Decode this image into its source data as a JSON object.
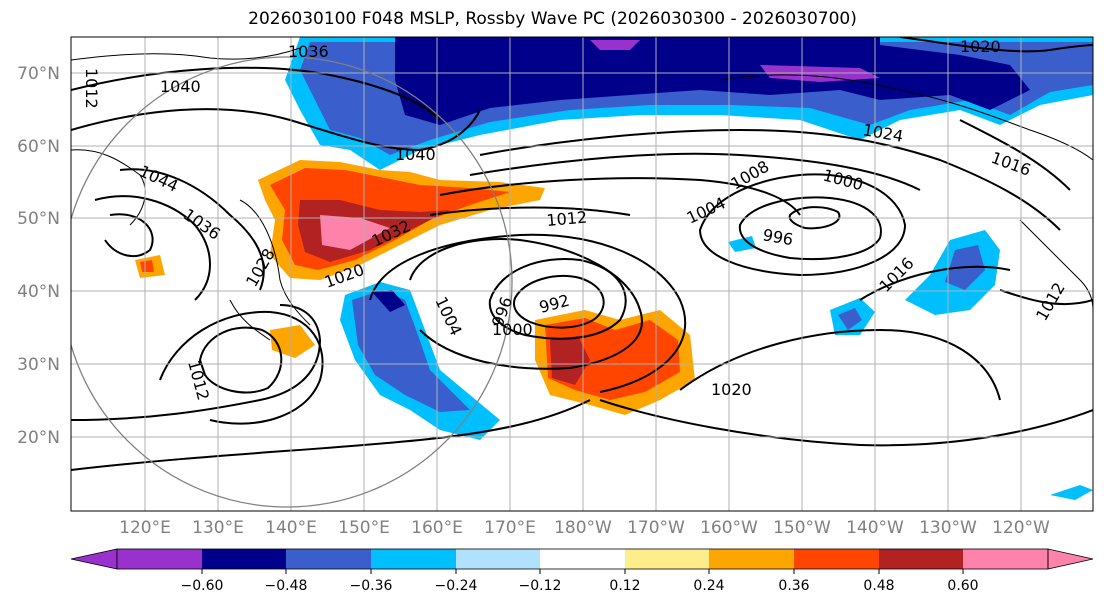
{
  "title": "2026030100 F048 MSLP, Rossby Wave PC (2026030300 - 2026030700)",
  "latitudes": [
    "70°N",
    "60°N",
    "50°N",
    "40°N",
    "30°N",
    "20°N"
  ],
  "longitudes": [
    "120°E",
    "130°E",
    "140°E",
    "150°E",
    "160°E",
    "170°E",
    "180°W",
    "170°W",
    "160°W",
    "150°W",
    "140°W",
    "130°W",
    "120°W"
  ],
  "isobars": [
    "1036",
    "1040",
    "1040",
    "1044",
    "1036",
    "1032",
    "1028",
    "1020",
    "1012",
    "1008",
    "1004",
    "1000",
    "996",
    "992",
    "996",
    "1000",
    "1004",
    "1012",
    "1016",
    "1024",
    "1016",
    "1020",
    "1020",
    "1012",
    "1012"
  ],
  "colorbar": {
    "ticks": [
      "−0.60",
      "−0.48",
      "−0.36",
      "−0.24",
      "−0.12",
      "0.12",
      "0.24",
      "0.36",
      "0.48",
      "0.60"
    ],
    "colors": [
      "#9932cc",
      "#00008b",
      "#3a5fcd",
      "#00bfff",
      "#b0e2ff",
      "#ffffff",
      "#ffec8b",
      "#ffa500",
      "#ff4500",
      "#b22222",
      "#ff82ab"
    ]
  }
}
